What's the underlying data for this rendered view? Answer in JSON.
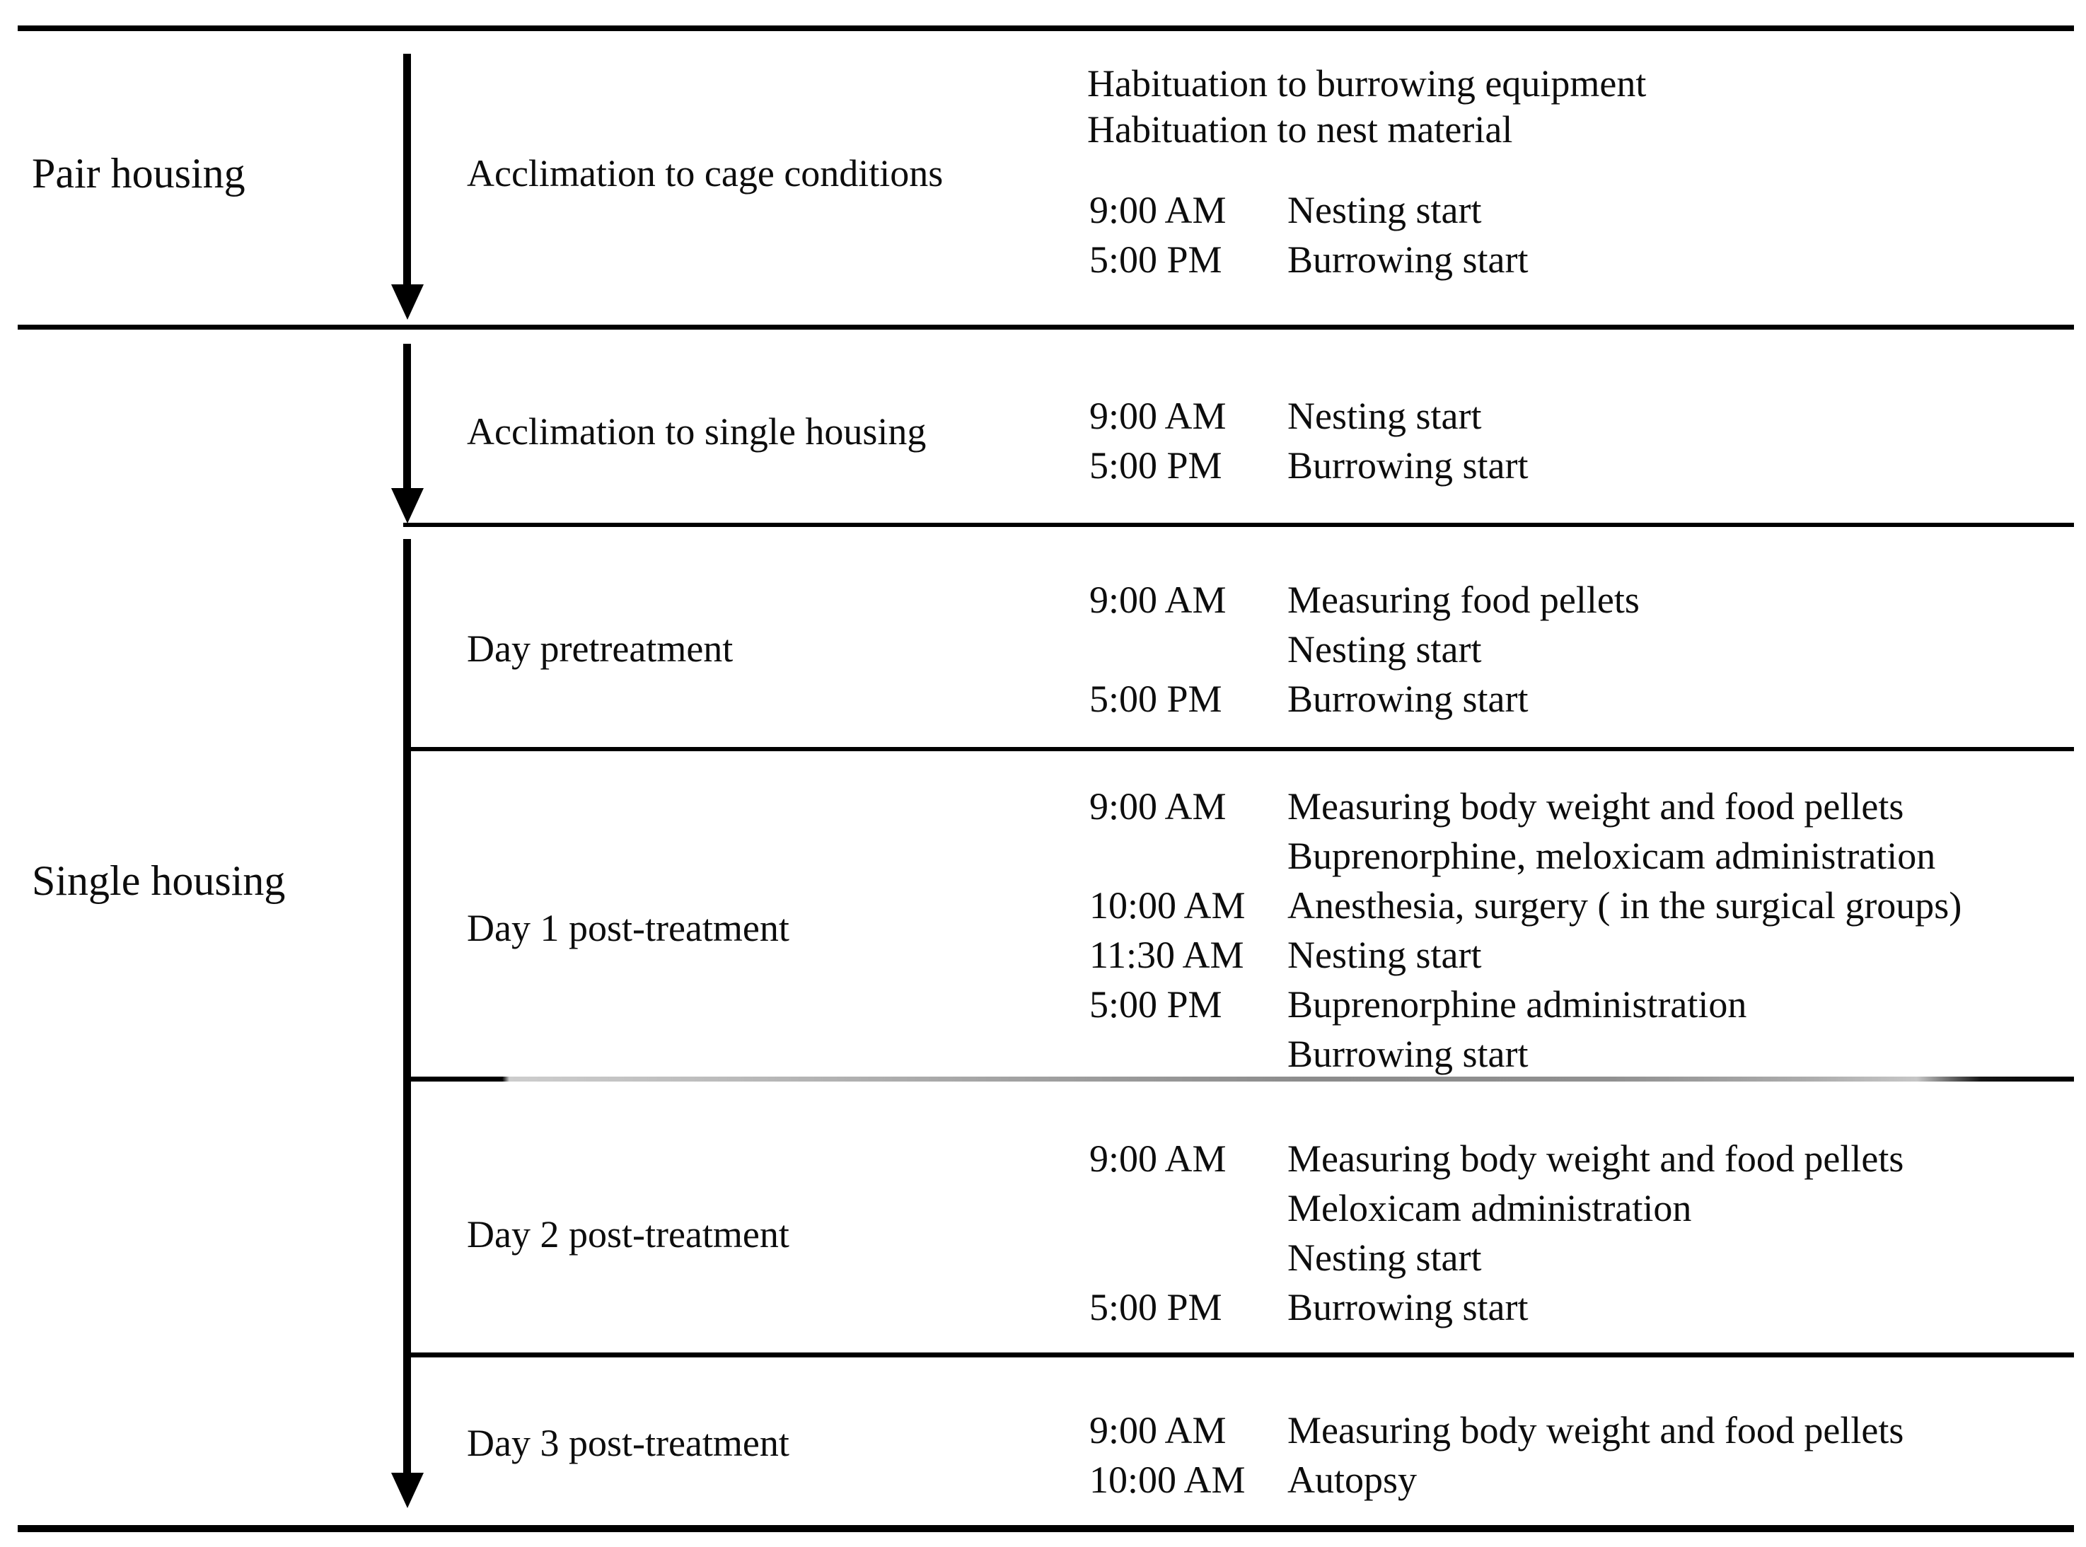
{
  "figure": {
    "type": "experimental-timeline",
    "colors": {
      "ink": "#000000",
      "faded_rule": "#8c8c8c",
      "background": "#ffffff"
    },
    "left_groups": [
      {
        "label": "Pair housing"
      },
      {
        "label": "Single housing"
      }
    ],
    "sections": [
      {
        "phase": "Acclimation to cage conditions",
        "notes": [
          "Habituation to burrowing equipment",
          "Habituation to nest material"
        ],
        "schedule": [
          {
            "time": "9:00 AM",
            "activity": "Nesting start"
          },
          {
            "time": "5:00 PM",
            "activity": "Burrowing start"
          }
        ]
      },
      {
        "phase": "Acclimation to single housing",
        "schedule": [
          {
            "time": "9:00 AM",
            "activity": "Nesting start"
          },
          {
            "time": "5:00 PM",
            "activity": "Burrowing start"
          }
        ]
      },
      {
        "phase": "Day pretreatment",
        "schedule": [
          {
            "time": "9:00 AM",
            "activity": "Measuring food pellets"
          },
          {
            "time": "",
            "activity": "Nesting start"
          },
          {
            "time": "5:00 PM",
            "activity": "Burrowing start"
          }
        ]
      },
      {
        "phase": "Day 1 post-treatment",
        "schedule": [
          {
            "time": "9:00 AM",
            "activity": "Measuring body weight and food pellets"
          },
          {
            "time": "",
            "activity": "Buprenorphine, meloxicam administration"
          },
          {
            "time": "10:00 AM",
            "activity": "Anesthesia, surgery ( in the surgical groups)"
          },
          {
            "time": "11:30 AM",
            "activity": "Nesting start"
          },
          {
            "time": "5:00 PM",
            "activity": "Buprenorphine administration"
          },
          {
            "time": "",
            "activity": "Burrowing start"
          }
        ]
      },
      {
        "phase": "Day 2 post-treatment",
        "schedule": [
          {
            "time": "9:00 AM",
            "activity": "Measuring body weight and food pellets"
          },
          {
            "time": "",
            "activity": "Meloxicam administration"
          },
          {
            "time": "",
            "activity": "Nesting start"
          },
          {
            "time": "5:00 PM",
            "activity": "Burrowing start"
          }
        ]
      },
      {
        "phase": "Day 3 post-treatment",
        "schedule": [
          {
            "time": "9:00 AM",
            "activity": "Measuring body weight and food pellets"
          },
          {
            "time": "10:00 AM",
            "activity": "Autopsy"
          }
        ]
      }
    ]
  }
}
